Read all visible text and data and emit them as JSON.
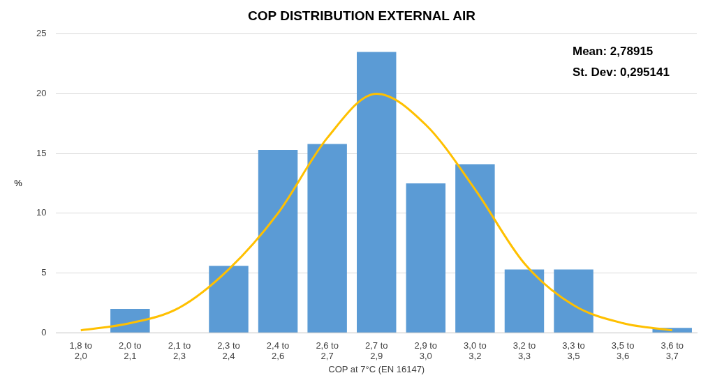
{
  "chart_data": {
    "type": "bar",
    "title": "COP DISTRIBUTION EXTERNAL AIR",
    "xlabel": "COP at 7°C (EN 16147)",
    "ylabel": "%",
    "categories": [
      "1,8 to 2,0",
      "2,0 to 2,1",
      "2,1 to 2,3",
      "2,3 to 2,4",
      "2,4 to 2,6",
      "2,6 to 2,7",
      "2,7 to 2,9",
      "2,9 to 3,0",
      "3,0 to 3,2",
      "3,2 to 3,3",
      "3,3 to 3,5",
      "3,5 to 3,6",
      "3,6 to 3,7"
    ],
    "series": [
      {
        "color": "#5b9bd5",
        "values": [
          0,
          2,
          0,
          5.6,
          15.3,
          15.8,
          23.5,
          12.5,
          14.1,
          5.3,
          5.3,
          0,
          0.4
        ]
      },
      {
        "type": "line",
        "color": "#ffc000",
        "marker": "none",
        "values": [
          0.2,
          0.8,
          2.1,
          5.3,
          10,
          16.3,
          20,
          17.4,
          12,
          5.8,
          2.3,
          0.8,
          0.2
        ]
      }
    ],
    "ylim": [
      0,
      25
    ],
    "yticks": [
      0,
      5,
      10,
      15,
      20,
      25
    ],
    "grid": "y",
    "legend": false,
    "annotations": [
      "Mean: 2,78915",
      "St. Dev: 0,295141"
    ]
  }
}
